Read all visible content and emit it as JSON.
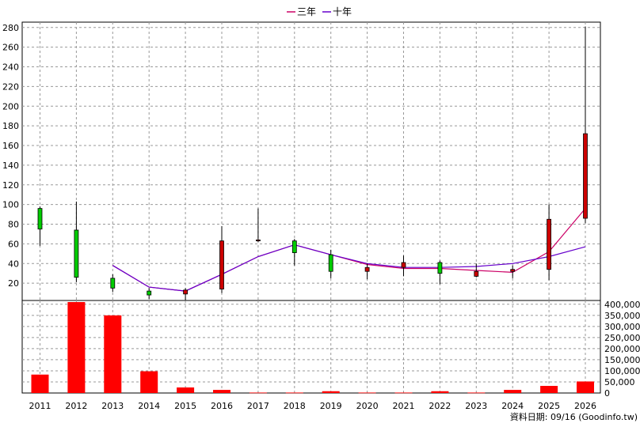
{
  "chart_data": {
    "type": "candlestick+bar",
    "legend": [
      {
        "name": "三年",
        "color": "#cc0066"
      },
      {
        "name": "十年",
        "color": "#6600cc"
      }
    ],
    "years": [
      "2011",
      "2012",
      "2013",
      "2014",
      "2015",
      "2016",
      "2017",
      "2018",
      "2019",
      "2020",
      "2021",
      "2022",
      "2023",
      "2024",
      "2025",
      "2026"
    ],
    "price_axis": {
      "min": 0,
      "max": 285,
      "ticks": [
        20,
        40,
        60,
        80,
        100,
        120,
        140,
        160,
        180,
        200,
        220,
        240,
        260,
        280
      ]
    },
    "volume_axis": {
      "min": 0,
      "max": 410000,
      "ticks": [
        0,
        50000,
        100000,
        150000,
        200000,
        250000,
        300000,
        350000,
        400000
      ],
      "tick_labels": [
        "0",
        "50,000",
        "100,000",
        "150,000",
        "200,000",
        "250,000",
        "300,000",
        "350,000",
        "400,000"
      ]
    },
    "candles": [
      {
        "year": "2011",
        "open": 96,
        "close": 75,
        "high": 98,
        "low": 58
      },
      {
        "year": "2012",
        "open": 74,
        "close": 26,
        "high": 103,
        "low": 21
      },
      {
        "year": "2013",
        "open": 25,
        "close": 15,
        "high": 29,
        "low": 11
      },
      {
        "year": "2014",
        "open": 12,
        "close": 8,
        "high": 15,
        "low": 4
      },
      {
        "year": "2015",
        "open": 9,
        "close": 13,
        "high": 15,
        "low": 2
      },
      {
        "year": "2016",
        "open": 14,
        "close": 63,
        "high": 78,
        "low": 10
      },
      {
        "year": "2017",
        "open": 63,
        "close": 64,
        "high": 96,
        "low": 62
      },
      {
        "year": "2018",
        "open": 63,
        "close": 51,
        "high": 65,
        "low": 38
      },
      {
        "year": "2019",
        "open": 49,
        "close": 32,
        "high": 54,
        "low": 25
      },
      {
        "year": "2020",
        "open": 32,
        "close": 36,
        "high": 40,
        "low": 24
      },
      {
        "year": "2021",
        "open": 36,
        "close": 41,
        "high": 48,
        "low": 27
      },
      {
        "year": "2022",
        "open": 41,
        "close": 30,
        "high": 43,
        "low": 19
      },
      {
        "year": "2023",
        "open": 27,
        "close": 32,
        "high": 40,
        "low": 26
      },
      {
        "year": "2024",
        "open": 32,
        "close": 34,
        "high": 38,
        "low": 25
      },
      {
        "year": "2025",
        "open": 34,
        "close": 85,
        "high": 100,
        "low": 23
      },
      {
        "year": "2026",
        "open": 86,
        "close": 172,
        "high": 281,
        "low": 81
      }
    ],
    "series": [
      {
        "name": "三年",
        "start_index": 2,
        "values": [
          38,
          16,
          12,
          29,
          47,
          59,
          49,
          39,
          35,
          35,
          33,
          31,
          52,
          96
        ]
      },
      {
        "name": "十年",
        "start_index": 2,
        "values": [
          38,
          16,
          12,
          29,
          47,
          59,
          49,
          40,
          36,
          36,
          37,
          40,
          47,
          57
        ]
      }
    ],
    "volume": [
      83000,
      410000,
      350000,
      98000,
      25000,
      14000,
      2000,
      2000,
      8000,
      2000,
      2000,
      8000,
      2000,
      14000,
      32000,
      52000
    ],
    "footer": "資料日期: 09/16  (Goodinfo.tw)"
  }
}
